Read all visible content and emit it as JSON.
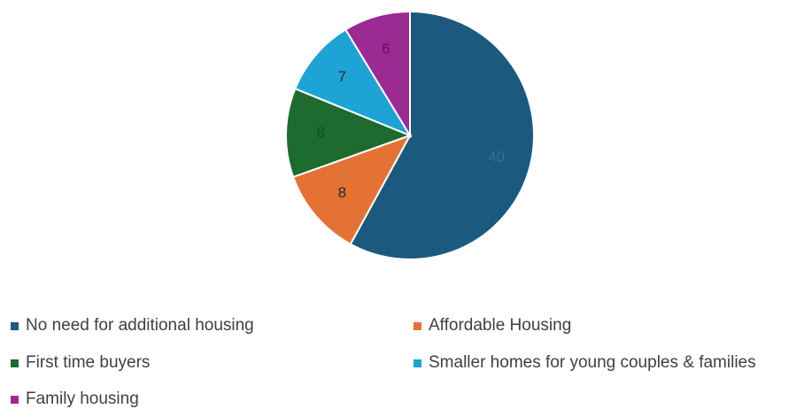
{
  "chart_data": {
    "type": "pie",
    "title": "",
    "categories": [
      "No need for additional housing",
      "Affordable Housing",
      "First time buyers",
      "Smaller homes for young couples & families",
      "Family housing"
    ],
    "values": [
      40,
      8,
      8,
      7,
      6
    ],
    "labels": [
      "40",
      "8",
      "8",
      "7",
      "6"
    ],
    "colors": [
      "#1b5a7e",
      "#e57235",
      "#1d6b2e",
      "#1ea3d6",
      "#9c2a93"
    ],
    "label_colors": [
      "#3e6f8f",
      "#2a2a2a",
      "#1a4a22",
      "#2a2a2a",
      "#5a1a55"
    ],
    "start_angle_deg": 0,
    "direction": "clockwise",
    "legend_position": "bottom"
  }
}
